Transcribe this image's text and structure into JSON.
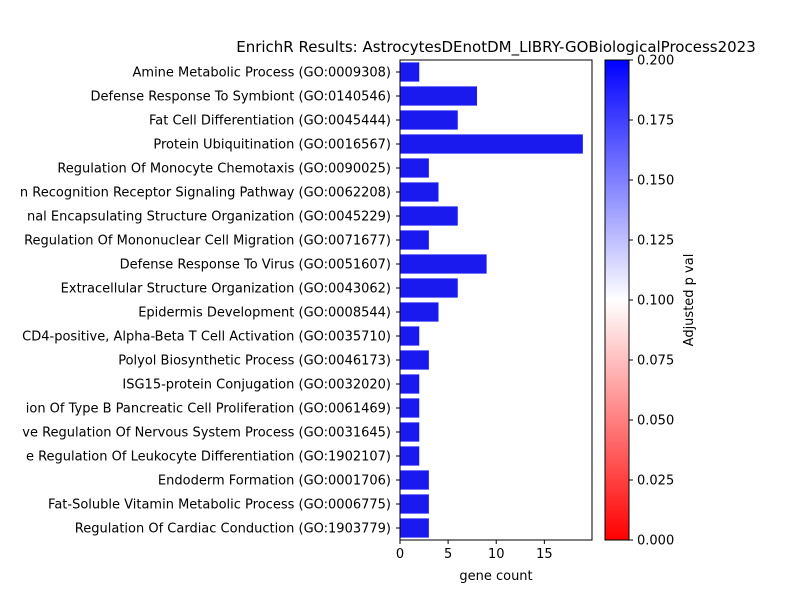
{
  "chart_data": {
    "type": "bar",
    "orientation": "horizontal",
    "title": "EnrichR Results: AstrocytesDEnotDM_LIBRY-GOBiologicalProcess2023",
    "xlabel": "gene count",
    "ylabel": "",
    "xlim": [
      0,
      19.95
    ],
    "xticks": [
      0,
      5,
      10,
      15
    ],
    "grid": false,
    "bar_color": "#1a1aee",
    "categories": [
      "Amine Metabolic Process (GO:0009308)",
      "Defense Response To Symbiont (GO:0140546)",
      "Fat Cell Differentiation (GO:0045444)",
      "Protein Ubiquitination (GO:0016567)",
      "Regulation Of Monocyte Chemotaxis (GO:0090025)",
      "n Recognition Receptor Signaling Pathway (GO:0062208)",
      "nal Encapsulating Structure Organization (GO:0045229)",
      "Regulation Of Mononuclear Cell Migration (GO:0071677)",
      "Defense Response To Virus (GO:0051607)",
      "Extracellular Structure Organization (GO:0043062)",
      "Epidermis Development (GO:0008544)",
      "CD4-positive, Alpha-Beta T Cell Activation (GO:0035710)",
      "Polyol Biosynthetic Process (GO:0046173)",
      "ISG15-protein Conjugation (GO:0032020)",
      "ion Of Type B Pancreatic Cell Proliferation (GO:0061469)",
      "ve Regulation Of Nervous System Process (GO:0031645)",
      "e Regulation Of Leukocyte Differentiation (GO:1902107)",
      "Endoderm Formation (GO:0001706)",
      "Fat-Soluble Vitamin Metabolic Process (GO:0006775)",
      "Regulation Of Cardiac Conduction (GO:1903779)"
    ],
    "values": [
      2,
      8,
      6,
      19,
      3,
      4,
      6,
      3,
      9,
      6,
      4,
      2,
      3,
      2,
      2,
      2,
      2,
      3,
      3,
      3
    ],
    "colorbar": {
      "label": "Adjusted p val",
      "range": [
        0,
        0.2
      ],
      "ticks": [
        "0.000",
        "0.025",
        "0.050",
        "0.075",
        "0.100",
        "0.125",
        "0.150",
        "0.175",
        "0.200"
      ],
      "colors": [
        "#ff0000",
        "#ffffff",
        "#0000ff"
      ]
    }
  }
}
